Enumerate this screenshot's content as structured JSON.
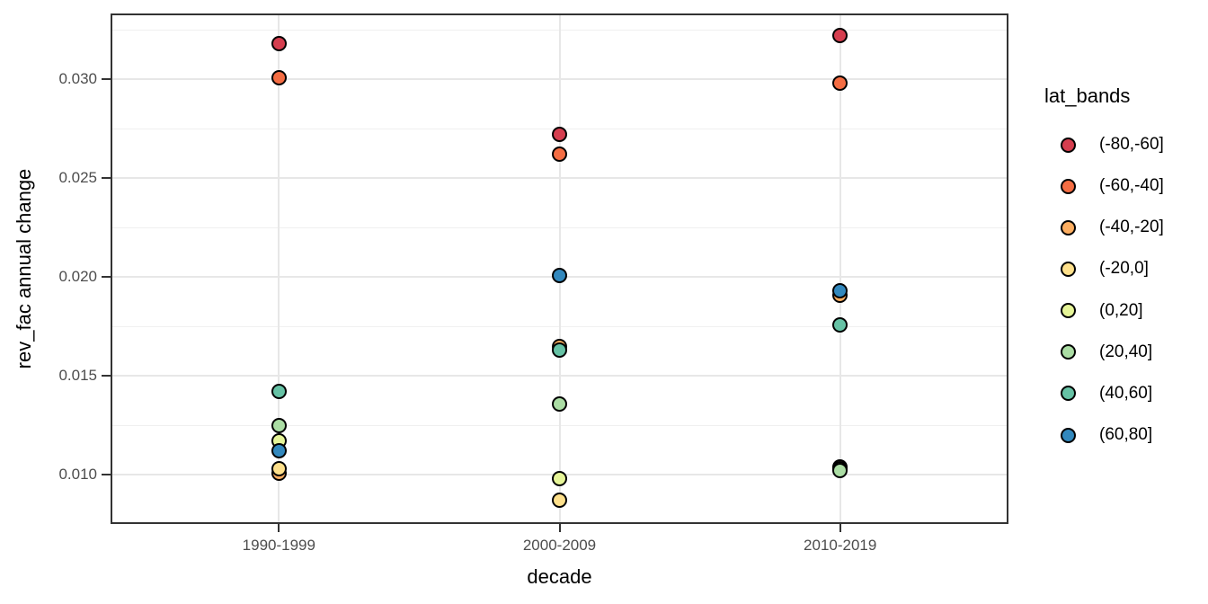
{
  "figure": {
    "background": "#ffffff",
    "panel_border_color": "#333333",
    "grid_major_color": "#e7e7e7",
    "grid_minor_color": "#f0f0f0",
    "tick_color": "#333333",
    "tick_label_color": "#4d4d4d"
  },
  "chart_data": {
    "type": "scatter",
    "title": "",
    "xlabel": "decade",
    "ylabel": "rev_fac annual change",
    "categories": [
      "1990-1999",
      "2000-2009",
      "2010-2019"
    ],
    "y_ticks": [
      0.01,
      0.015,
      0.02,
      0.025,
      0.03
    ],
    "y_tick_labels": [
      "0.010",
      "0.015",
      "0.020",
      "0.025",
      "0.030"
    ],
    "ylim": [
      0.00751,
      0.03333
    ],
    "grid": true,
    "legend_title": "lat_bands",
    "legend_position": "right",
    "point_outline": "#000000",
    "series": [
      {
        "name": "(-80,-60]",
        "color": "#d53e4f",
        "values": [
          0.0318,
          0.0272,
          0.0322
        ]
      },
      {
        "name": "(-60,-40]",
        "color": "#f46d43",
        "values": [
          0.0301,
          0.0262,
          0.0298
        ]
      },
      {
        "name": "(-40,-20]",
        "color": "#fdae61",
        "values": [
          0.0101,
          0.0165,
          0.0191
        ]
      },
      {
        "name": "(-20,0]",
        "color": "#fee08b",
        "values": [
          0.0103,
          0.0087,
          0.0104
        ]
      },
      {
        "name": "(0,20]",
        "color": "#e6f598",
        "values": [
          0.0117,
          0.0098,
          0.0103
        ]
      },
      {
        "name": "(20,40]",
        "color": "#abdda4",
        "values": [
          0.0125,
          0.0136,
          0.0102
        ]
      },
      {
        "name": "(40,60]",
        "color": "#66c2a5",
        "values": [
          0.0142,
          0.0163,
          0.0176
        ]
      },
      {
        "name": "(60,80]",
        "color": "#3288bd",
        "values": [
          0.0112,
          0.0201,
          0.0193
        ]
      }
    ]
  }
}
